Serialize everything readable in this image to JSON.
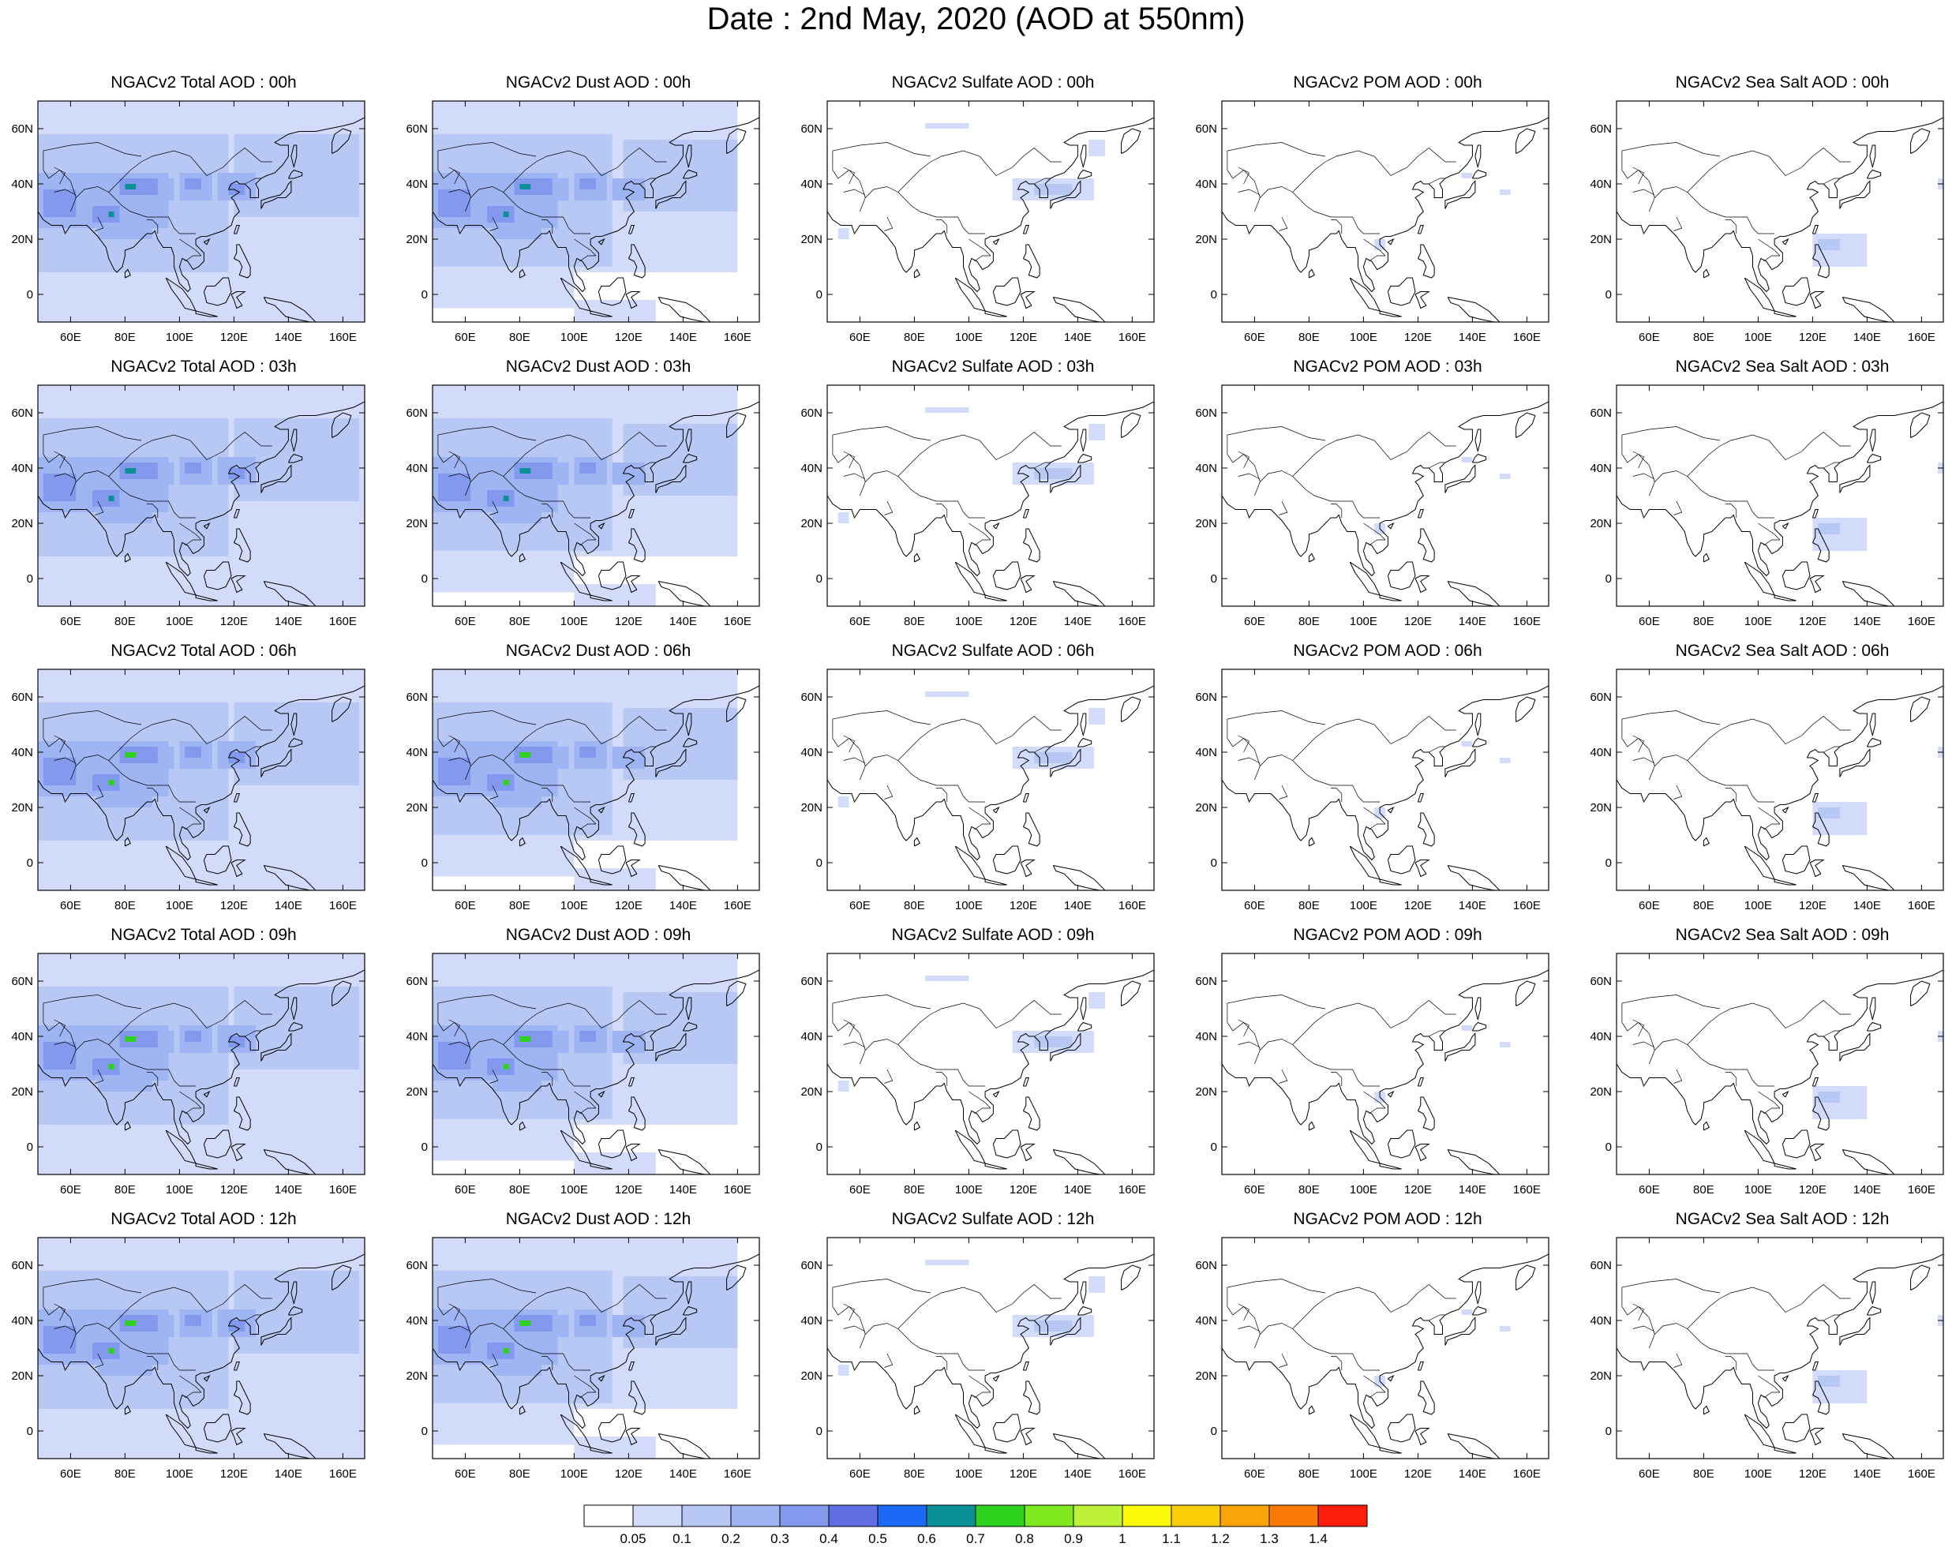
{
  "title": "Date : 2nd May, 2020 (AOD at 550nm)",
  "axes": {
    "lon_ticks": [
      "60E",
      "80E",
      "100E",
      "120E",
      "140E",
      "160E"
    ],
    "lon_values": [
      60,
      80,
      100,
      120,
      140,
      160
    ],
    "lat_ticks": [
      "60N",
      "40N",
      "20N",
      "0"
    ],
    "lat_values": [
      60,
      40,
      20,
      0
    ],
    "lon_range": [
      48,
      168
    ],
    "lat_range": [
      -10,
      70
    ]
  },
  "colorbar": {
    "labels": [
      "0.05",
      "0.1",
      "0.2",
      "0.3",
      "0.4",
      "0.5",
      "0.6",
      "0.7",
      "0.8",
      "0.9",
      "1",
      "1.1",
      "1.2",
      "1.3",
      "1.4"
    ],
    "colors": [
      "#ffffff",
      "#d2dcfa",
      "#b7c8f5",
      "#9fb4f2",
      "#8299ee",
      "#5f6fe3",
      "#1b69f4",
      "#0a9096",
      "#2fd21f",
      "#7fe81e",
      "#bef237",
      "#fbfa07",
      "#fbcd07",
      "#fba407",
      "#fb7a07",
      "#fb1e0c"
    ]
  },
  "panels": [
    {
      "title": "NGACv2 Total AOD : 00h",
      "species": "total"
    },
    {
      "title": "NGACv2 Dust AOD : 00h",
      "species": "dust"
    },
    {
      "title": "NGACv2 Sulfate AOD : 00h",
      "species": "sulfate"
    },
    {
      "title": "NGACv2 POM AOD : 00h",
      "species": "pom"
    },
    {
      "title": "NGACv2 Sea Salt AOD : 00h",
      "species": "seasalt"
    },
    {
      "title": "NGACv2 Total AOD : 03h",
      "species": "total"
    },
    {
      "title": "NGACv2 Dust AOD : 03h",
      "species": "dust"
    },
    {
      "title": "NGACv2 Sulfate AOD : 03h",
      "species": "sulfate"
    },
    {
      "title": "NGACv2 POM AOD : 03h",
      "species": "pom"
    },
    {
      "title": "NGACv2 Sea Salt AOD : 03h",
      "species": "seasalt"
    },
    {
      "title": "NGACv2 Total AOD : 06h",
      "species": "total"
    },
    {
      "title": "NGACv2 Dust AOD : 06h",
      "species": "dust"
    },
    {
      "title": "NGACv2 Sulfate AOD : 06h",
      "species": "sulfate"
    },
    {
      "title": "NGACv2 POM AOD : 06h",
      "species": "pom"
    },
    {
      "title": "NGACv2 Sea Salt AOD : 06h",
      "species": "seasalt"
    },
    {
      "title": "NGACv2 Total AOD : 09h",
      "species": "total"
    },
    {
      "title": "NGACv2 Dust AOD : 09h",
      "species": "dust"
    },
    {
      "title": "NGACv2 Sulfate AOD : 09h",
      "species": "sulfate"
    },
    {
      "title": "NGACv2 POM AOD : 09h",
      "species": "pom"
    },
    {
      "title": "NGACv2 Sea Salt  AOD : 09h",
      "species": "seasalt"
    },
    {
      "title": "NGACv2 Total AOD  : 12h",
      "species": "total"
    },
    {
      "title": "NGACv2 Dust AOD : 12h",
      "species": "dust"
    },
    {
      "title": "NGACv2 Sulfate AOD : 12h",
      "species": "sulfate"
    },
    {
      "title": "NGACv2 POM  AOD : 12h",
      "species": "pom"
    },
    {
      "title": "NGACv2 Sea Salt  AOD : 12h",
      "species": "seasalt"
    }
  ]
}
